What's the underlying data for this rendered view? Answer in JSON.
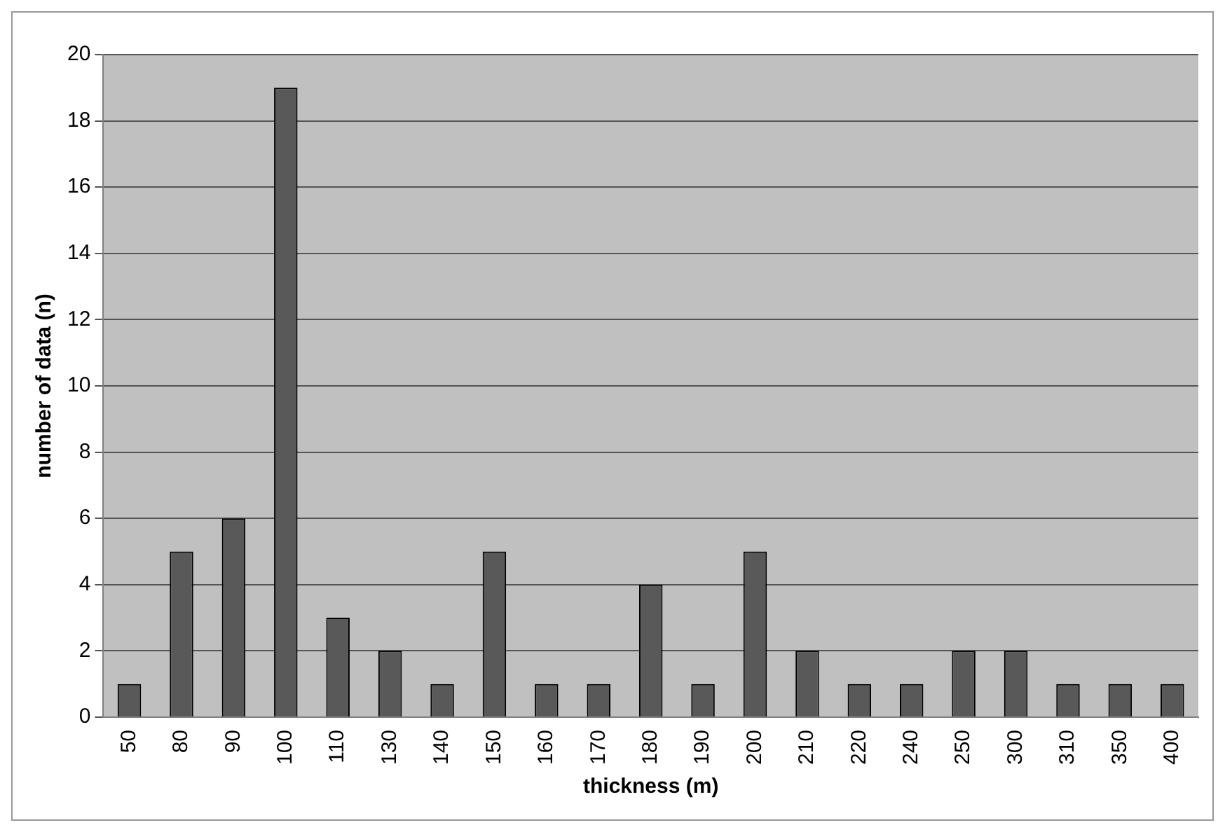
{
  "chart_data": {
    "type": "bar",
    "xlabel": "thickness (m)",
    "ylabel": "number of data (n)",
    "categories": [
      "50",
      "80",
      "90",
      "100",
      "110",
      "130",
      "140",
      "150",
      "160",
      "170",
      "180",
      "190",
      "200",
      "210",
      "220",
      "240",
      "250",
      "300",
      "310",
      "350",
      "400"
    ],
    "values": [
      1,
      5,
      6,
      19,
      3,
      2,
      1,
      5,
      1,
      1,
      4,
      1,
      5,
      2,
      1,
      1,
      2,
      2,
      1,
      1,
      1
    ],
    "color": "#595959",
    "ylim": [
      0,
      20
    ],
    "yticks": [
      0,
      2,
      4,
      6,
      8,
      10,
      12,
      14,
      16,
      18,
      20
    ],
    "grid": "y",
    "legend": false
  }
}
